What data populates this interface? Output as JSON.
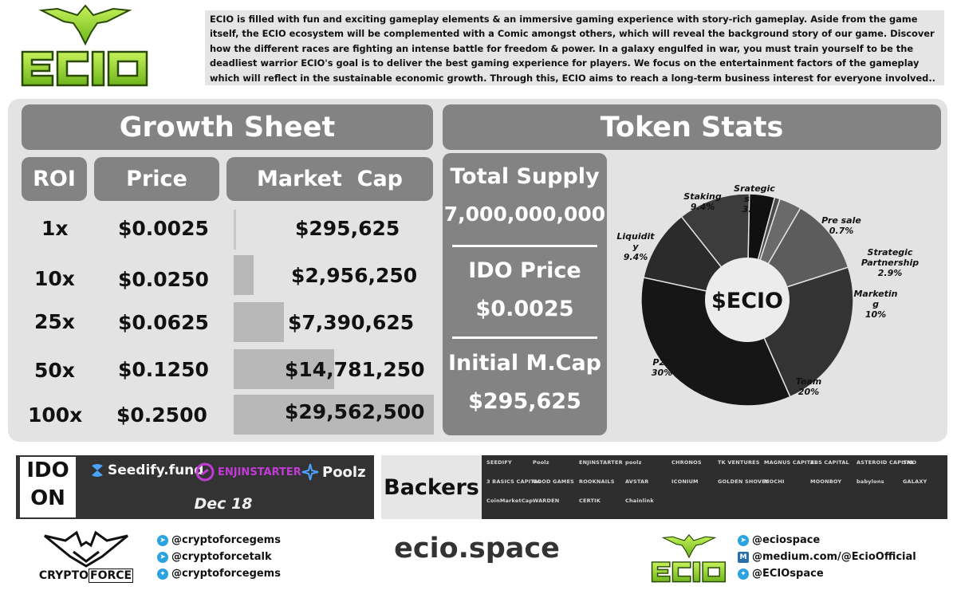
{
  "header": {
    "logo_text": "ECIO",
    "intro": "ECIO is filled with fun and exciting gameplay elements & an immersive gaming experience with story-rich gameplay. Aside from the game itself, the ECIO ecosystem will be complemented with a Comic amongst others, which will reveal the background story of our game. Discover how the different races are fighting an intense battle for freedom & power. In a galaxy engulfed in war, you must train yourself to be the deadliest warrior ECIO's goal is to deliver the best gaming experience for players. We focus on the entertainment factors of the gameplay which will reflect in the sustainable economic growth. Through this, ECIO aims to reach a long-term business interest for everyone involved..",
    "accent": "#a6e22e"
  },
  "growth": {
    "title": "Growth Sheet",
    "col_roi": "ROI",
    "col_price": "Price",
    "col_mcap": "Market  Cap",
    "rows": [
      {
        "roi": "1x",
        "price": "$0.0025",
        "mcap": "$295,625",
        "bar_fraction": 0.01
      },
      {
        "roi": "10x",
        "price": "$0.0250",
        "mcap": "$2,956,250",
        "bar_fraction": 0.1
      },
      {
        "roi": "25x",
        "price": "$0.0625",
        "mcap": "$7,390,625",
        "bar_fraction": 0.25
      },
      {
        "roi": "50x",
        "price": "$0.1250",
        "mcap": "$14,781,250",
        "bar_fraction": 0.5
      },
      {
        "roi": "100x",
        "price": "$0.2500",
        "mcap": "$29,562,500",
        "bar_fraction": 1.0
      }
    ]
  },
  "token": {
    "title": "Token Stats",
    "total_supply_label": "Total Supply",
    "total_supply": "7,000,000,000",
    "ido_price_label": "IDO Price",
    "ido_price": "$0.0025",
    "initial_mcap_label": "Initial M.Cap",
    "initial_mcap": "$295,625",
    "donut_center": "$ECIO"
  },
  "chart_data": {
    "type": "pie",
    "categories": [
      "Srategic sale",
      "Pre sale",
      "Strategic Partnership",
      "Marketing",
      "Team",
      "P2E",
      "Liquidity",
      "Staking"
    ],
    "values": [
      3.3,
      0.7,
      2.9,
      10,
      20,
      30,
      9.4,
      9.4
    ],
    "labels": [
      {
        "name": "Srategic\nsale",
        "pct": "3.3%"
      },
      {
        "name": "Pre sale",
        "pct": "0.7%"
      },
      {
        "name": "Strategic Partnership",
        "pct": "2.9%"
      },
      {
        "name": "Marketin\ng",
        "pct": "10%"
      },
      {
        "name": "Team",
        "pct": "20%"
      },
      {
        "name": "P2E",
        "pct": "30%"
      },
      {
        "name": "Liquidit\ny",
        "pct": "9.4%"
      },
      {
        "name": "Staking",
        "pct": "9.4%"
      }
    ],
    "colors": [
      "#101010",
      "#4a4a4a",
      "#6a6a6a",
      "#5c5c5c",
      "#333333",
      "#161616",
      "#2b2b2b",
      "#3c3c3c"
    ]
  },
  "ido": {
    "label_line1": "IDO",
    "label_line2": "ON",
    "platforms": [
      "Seedify.fund",
      "ENJINSTARTER",
      "Poolz"
    ],
    "date": "Dec 18"
  },
  "backers": {
    "label": "Backers",
    "names": [
      "SEEDIFY",
      "Poolz",
      "ENJINSTARTER",
      "poolz",
      "CHRONOS",
      "TK VENTURES",
      "MAGNUS CAPITAL",
      "ZBS CAPITAL",
      "ASTEROID CAPITAL",
      "SMO",
      "3 BASICS CAPITAL",
      "GOOD GAMES",
      "ROOKNAILS",
      "AVSTAR",
      "ICONIUM",
      "GOLDEN SHOVEL",
      "MOCHI",
      "MOONBOY",
      "babylons",
      "GALAXY",
      "CoinMarketCap",
      "WARDEN",
      "CERTIK",
      "Chainlink"
    ]
  },
  "footer": {
    "cf_name_1": "CRYPTO",
    "cf_name_2": "FORCE",
    "left_socials": [
      "@cryptoforcegems",
      "@cryptoforcetalk",
      "@cryptoforcegems"
    ],
    "site": "ecio.space",
    "right_socials": [
      "@eciospace",
      "@medium.com/@EcioOfficial",
      "@ECIOspace"
    ]
  }
}
